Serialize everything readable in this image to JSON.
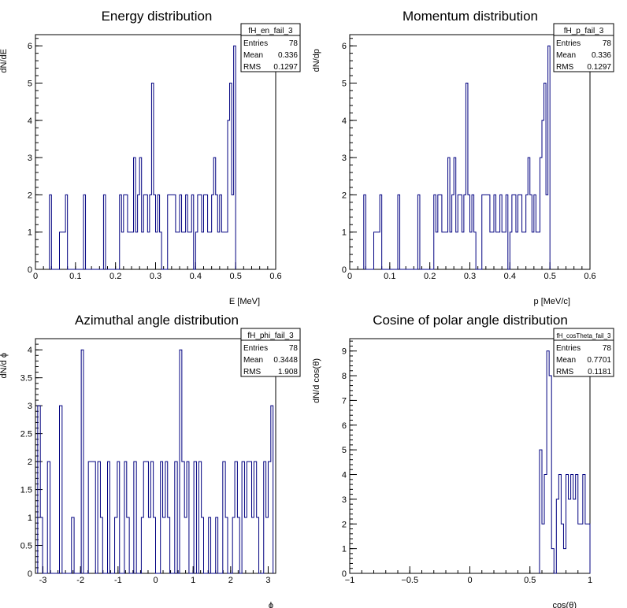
{
  "chart_data": [
    {
      "type": "histogram",
      "title": "Energy distribution",
      "xlabel": "E [MeV]",
      "ylabel": "dN/dE",
      "xlim": [
        0,
        0.6
      ],
      "ylim": [
        0,
        6.3
      ],
      "xticks": [
        0,
        0.1,
        0.2,
        0.3,
        0.4,
        0.5,
        0.6
      ],
      "yticks": [
        0,
        1,
        2,
        3,
        4,
        5,
        6
      ],
      "bin_width": 0.005,
      "bins": [
        [
          0.035,
          2
        ],
        [
          0.04,
          0
        ],
        [
          0.06,
          1
        ],
        [
          0.075,
          2
        ],
        [
          0.08,
          0
        ],
        [
          0.12,
          2
        ],
        [
          0.125,
          0
        ],
        [
          0.17,
          2
        ],
        [
          0.175,
          0
        ],
        [
          0.21,
          2
        ],
        [
          0.215,
          1
        ],
        [
          0.22,
          2
        ],
        [
          0.23,
          1
        ],
        [
          0.245,
          3
        ],
        [
          0.25,
          1
        ],
        [
          0.255,
          2
        ],
        [
          0.26,
          3
        ],
        [
          0.265,
          1
        ],
        [
          0.27,
          2
        ],
        [
          0.28,
          1
        ],
        [
          0.285,
          2
        ],
        [
          0.29,
          5
        ],
        [
          0.295,
          2
        ],
        [
          0.3,
          1
        ],
        [
          0.305,
          2
        ],
        [
          0.31,
          1
        ],
        [
          0.315,
          0
        ],
        [
          0.33,
          2
        ],
        [
          0.35,
          1
        ],
        [
          0.36,
          2
        ],
        [
          0.365,
          1
        ],
        [
          0.375,
          2
        ],
        [
          0.38,
          1
        ],
        [
          0.39,
          2
        ],
        [
          0.395,
          0
        ],
        [
          0.4,
          1
        ],
        [
          0.405,
          2
        ],
        [
          0.415,
          1
        ],
        [
          0.42,
          2
        ],
        [
          0.43,
          1
        ],
        [
          0.44,
          2
        ],
        [
          0.445,
          3
        ],
        [
          0.45,
          2
        ],
        [
          0.455,
          1
        ],
        [
          0.46,
          2
        ],
        [
          0.465,
          1
        ],
        [
          0.48,
          4
        ],
        [
          0.485,
          5
        ],
        [
          0.49,
          2
        ],
        [
          0.495,
          6
        ],
        [
          0.5,
          0
        ]
      ],
      "stats": {
        "name": "fH_en_fail_3",
        "entries": "78",
        "mean": "0.336",
        "rms": "0.1297"
      }
    },
    {
      "type": "histogram",
      "title": "Momentum distribution",
      "xlabel": "p [MeV/c]",
      "ylabel": "dN/dp",
      "xlim": [
        0,
        0.6
      ],
      "ylim": [
        0,
        6.3
      ],
      "xticks": [
        0,
        0.1,
        0.2,
        0.3,
        0.4,
        0.5,
        0.6
      ],
      "yticks": [
        0,
        1,
        2,
        3,
        4,
        5,
        6
      ],
      "bin_width": 0.005,
      "bins": [
        [
          0.035,
          2
        ],
        [
          0.04,
          0
        ],
        [
          0.06,
          1
        ],
        [
          0.075,
          2
        ],
        [
          0.08,
          0
        ],
        [
          0.12,
          2
        ],
        [
          0.125,
          0
        ],
        [
          0.17,
          2
        ],
        [
          0.175,
          0
        ],
        [
          0.21,
          2
        ],
        [
          0.215,
          1
        ],
        [
          0.22,
          2
        ],
        [
          0.23,
          1
        ],
        [
          0.245,
          3
        ],
        [
          0.25,
          1
        ],
        [
          0.255,
          2
        ],
        [
          0.26,
          3
        ],
        [
          0.265,
          1
        ],
        [
          0.27,
          2
        ],
        [
          0.28,
          1
        ],
        [
          0.285,
          2
        ],
        [
          0.29,
          5
        ],
        [
          0.295,
          2
        ],
        [
          0.3,
          1
        ],
        [
          0.305,
          2
        ],
        [
          0.31,
          1
        ],
        [
          0.315,
          0
        ],
        [
          0.33,
          2
        ],
        [
          0.35,
          1
        ],
        [
          0.36,
          2
        ],
        [
          0.365,
          1
        ],
        [
          0.375,
          2
        ],
        [
          0.38,
          1
        ],
        [
          0.39,
          2
        ],
        [
          0.395,
          0
        ],
        [
          0.4,
          1
        ],
        [
          0.405,
          2
        ],
        [
          0.415,
          1
        ],
        [
          0.42,
          2
        ],
        [
          0.43,
          1
        ],
        [
          0.44,
          2
        ],
        [
          0.445,
          3
        ],
        [
          0.45,
          2
        ],
        [
          0.455,
          1
        ],
        [
          0.46,
          2
        ],
        [
          0.465,
          1
        ],
        [
          0.475,
          3
        ],
        [
          0.48,
          4
        ],
        [
          0.485,
          5
        ],
        [
          0.49,
          2
        ],
        [
          0.495,
          6
        ],
        [
          0.5,
          0
        ]
      ],
      "stats": {
        "name": "fH_p_fail_3",
        "entries": "78",
        "mean": "0.336",
        "rms": "0.1297"
      }
    },
    {
      "type": "histogram",
      "title": "Azimuthal angle distribution",
      "xlabel": "ϕ",
      "ylabel": "dN/d ϕ",
      "xlim": [
        -3.2,
        3.2
      ],
      "ylim": [
        0,
        4.2
      ],
      "xticks": [
        -3,
        -2,
        -1,
        0,
        1,
        2,
        3
      ],
      "yticks": [
        0,
        0.5,
        1,
        1.5,
        2,
        2.5,
        3,
        3.5,
        4
      ],
      "yticklabels": [
        "0",
        "0.5",
        "1",
        "1.5",
        "2",
        "2.5",
        "3",
        "3.5",
        "4"
      ],
      "bin_width": 0.064,
      "bins": [
        [
          -3.14,
          3
        ],
        [
          -3.07,
          1
        ],
        [
          -3.01,
          0
        ],
        [
          -2.88,
          2
        ],
        [
          -2.81,
          0
        ],
        [
          -2.56,
          3
        ],
        [
          -2.49,
          0
        ],
        [
          -2.24,
          1
        ],
        [
          -2.17,
          0
        ],
        [
          -1.98,
          4
        ],
        [
          -1.92,
          0
        ],
        [
          -1.79,
          2
        ],
        [
          -1.6,
          0
        ],
        [
          -1.54,
          2
        ],
        [
          -1.47,
          1
        ],
        [
          -1.41,
          0
        ],
        [
          -1.28,
          2
        ],
        [
          -1.22,
          0
        ],
        [
          -1.09,
          1
        ],
        [
          -1.02,
          2
        ],
        [
          -0.96,
          0
        ],
        [
          -0.83,
          2
        ],
        [
          -0.77,
          1
        ],
        [
          -0.7,
          0
        ],
        [
          -0.58,
          2
        ],
        [
          -0.51,
          0
        ],
        [
          -0.38,
          1
        ],
        [
          -0.32,
          2
        ],
        [
          -0.19,
          1
        ],
        [
          -0.13,
          2
        ],
        [
          -0.06,
          1
        ],
        [
          0.0,
          0
        ],
        [
          0.13,
          2
        ],
        [
          0.19,
          1
        ],
        [
          0.26,
          2
        ],
        [
          0.32,
          1
        ],
        [
          0.38,
          0
        ],
        [
          0.51,
          2
        ],
        [
          0.58,
          0
        ],
        [
          0.64,
          4
        ],
        [
          0.7,
          2
        ],
        [
          0.77,
          1
        ],
        [
          0.83,
          2
        ],
        [
          0.89,
          0
        ],
        [
          1.02,
          2
        ],
        [
          1.09,
          0
        ],
        [
          1.15,
          2
        ],
        [
          1.22,
          1
        ],
        [
          1.28,
          0
        ],
        [
          1.41,
          1
        ],
        [
          1.47,
          0
        ],
        [
          1.6,
          1
        ],
        [
          1.66,
          0
        ],
        [
          1.79,
          2
        ],
        [
          1.86,
          1
        ],
        [
          1.92,
          0
        ],
        [
          2.05,
          1
        ],
        [
          2.11,
          2
        ],
        [
          2.18,
          1
        ],
        [
          2.24,
          0
        ],
        [
          2.3,
          2
        ],
        [
          2.37,
          1
        ],
        [
          2.43,
          2
        ],
        [
          2.56,
          1
        ],
        [
          2.62,
          2
        ],
        [
          2.69,
          1
        ],
        [
          2.75,
          0
        ],
        [
          2.88,
          2
        ],
        [
          2.94,
          1
        ],
        [
          3.0,
          2
        ],
        [
          3.07,
          3
        ],
        [
          3.13,
          0
        ]
      ],
      "stats": {
        "name": "fH_phi_fail_3",
        "entries": "78",
        "mean": "0.3448",
        "rms": "1.908"
      }
    },
    {
      "type": "histogram",
      "title": "Cosine of polar angle distribution",
      "xlabel": "cos(θ)",
      "ylabel": "dN/d cos(θ)",
      "xlim": [
        -1,
        1
      ],
      "ylim": [
        0,
        9.5
      ],
      "xticks": [
        -1,
        -0.5,
        0,
        0.5,
        1
      ],
      "xticklabels": [
        "−1",
        "−0.5",
        "0",
        "0.5",
        "1"
      ],
      "yticks": [
        0,
        1,
        2,
        3,
        4,
        5,
        6,
        7,
        8,
        9
      ],
      "bin_width": 0.02,
      "bins": [
        [
          0.58,
          5
        ],
        [
          0.6,
          2
        ],
        [
          0.62,
          4
        ],
        [
          0.64,
          9
        ],
        [
          0.66,
          8
        ],
        [
          0.68,
          1
        ],
        [
          0.7,
          0
        ],
        [
          0.72,
          3
        ],
        [
          0.74,
          4
        ],
        [
          0.76,
          2
        ],
        [
          0.78,
          1
        ],
        [
          0.8,
          4
        ],
        [
          0.82,
          3
        ],
        [
          0.84,
          4
        ],
        [
          0.86,
          3
        ],
        [
          0.88,
          4
        ],
        [
          0.9,
          2
        ],
        [
          0.92,
          2
        ],
        [
          0.94,
          4
        ],
        [
          0.96,
          2
        ],
        [
          0.98,
          2
        ],
        [
          1.0,
          0
        ]
      ],
      "stats": {
        "name": "fH_cosTheta_fail_3",
        "entries": "78",
        "mean": "0.7701",
        "rms": "0.1181"
      }
    }
  ],
  "stats_labels": {
    "entries": "Entries",
    "mean": "Mean",
    "rms": "RMS"
  },
  "colors": {
    "line": "#000080",
    "axis": "#000000",
    "background": "#ffffff"
  }
}
